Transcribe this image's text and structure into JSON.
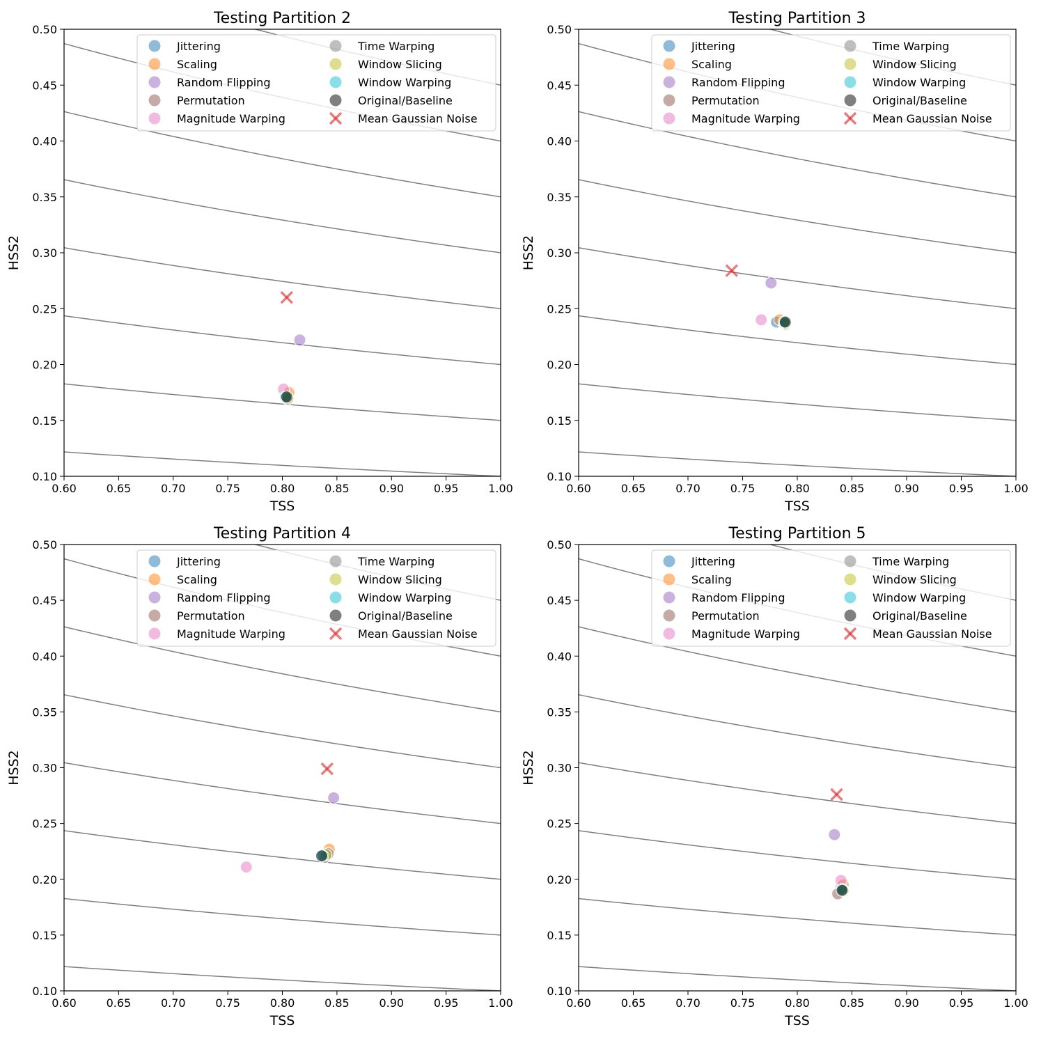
{
  "chart_data": [
    {
      "type": "scatter",
      "title": "Testing Partition 2",
      "xlabel": "TSS",
      "ylabel": "HSS2",
      "xlim": [
        0.6,
        1.0
      ],
      "ylim": [
        0.1,
        0.5
      ],
      "xticks": [
        "0.60",
        "0.65",
        "0.70",
        "0.75",
        "0.80",
        "0.85",
        "0.90",
        "0.95",
        "1.00"
      ],
      "yticks": [
        "0.10",
        "0.15",
        "0.20",
        "0.25",
        "0.30",
        "0.35",
        "0.40",
        "0.45",
        "0.50"
      ],
      "contour_levels": [
        0.1,
        0.15,
        0.2,
        0.25,
        0.3,
        0.35,
        0.4,
        0.45
      ],
      "legend_position": "top-right",
      "points": [
        {
          "series": "Jittering",
          "x": 0.803,
          "y": 0.172
        },
        {
          "series": "Scaling",
          "x": 0.806,
          "y": 0.175
        },
        {
          "series": "Random Flipping",
          "x": 0.816,
          "y": 0.222
        },
        {
          "series": "Permutation",
          "x": 0.805,
          "y": 0.169
        },
        {
          "series": "Magnitude Warping",
          "x": 0.801,
          "y": 0.178
        },
        {
          "series": "Time Warping",
          "x": 0.804,
          "y": 0.171
        },
        {
          "series": "Window Slicing",
          "x": 0.805,
          "y": 0.17
        },
        {
          "series": "Window Warping",
          "x": 0.803,
          "y": 0.171
        },
        {
          "series": "Original/Baseline",
          "x": 0.804,
          "y": 0.171
        },
        {
          "series": "Mean Gaussian Noise",
          "x": 0.804,
          "y": 0.26
        }
      ]
    },
    {
      "type": "scatter",
      "title": "Testing Partition 3",
      "xlabel": "TSS",
      "ylabel": "HSS2",
      "xlim": [
        0.6,
        1.0
      ],
      "ylim": [
        0.1,
        0.5
      ],
      "xticks": [
        "0.60",
        "0.65",
        "0.70",
        "0.75",
        "0.80",
        "0.85",
        "0.90",
        "0.95",
        "1.00"
      ],
      "yticks": [
        "0.10",
        "0.15",
        "0.20",
        "0.25",
        "0.30",
        "0.35",
        "0.40",
        "0.45",
        "0.50"
      ],
      "contour_levels": [
        0.1,
        0.15,
        0.2,
        0.25,
        0.3,
        0.35,
        0.4,
        0.45
      ],
      "legend_position": "top-right",
      "points": [
        {
          "series": "Jittering",
          "x": 0.781,
          "y": 0.238
        },
        {
          "series": "Scaling",
          "x": 0.784,
          "y": 0.24
        },
        {
          "series": "Random Flipping",
          "x": 0.776,
          "y": 0.273
        },
        {
          "series": "Permutation",
          "x": 0.789,
          "y": 0.236
        },
        {
          "series": "Magnitude Warping",
          "x": 0.767,
          "y": 0.24
        },
        {
          "series": "Time Warping",
          "x": 0.788,
          "y": 0.237
        },
        {
          "series": "Window Slicing",
          "x": 0.789,
          "y": 0.237
        },
        {
          "series": "Window Warping",
          "x": 0.788,
          "y": 0.238
        },
        {
          "series": "Original/Baseline",
          "x": 0.789,
          "y": 0.238
        },
        {
          "series": "Mean Gaussian Noise",
          "x": 0.74,
          "y": 0.284
        }
      ]
    },
    {
      "type": "scatter",
      "title": "Testing Partition 4",
      "xlabel": "TSS",
      "ylabel": "HSS2",
      "xlim": [
        0.6,
        1.0
      ],
      "ylim": [
        0.1,
        0.5
      ],
      "xticks": [
        "0.60",
        "0.65",
        "0.70",
        "0.75",
        "0.80",
        "0.85",
        "0.90",
        "0.95",
        "1.00"
      ],
      "yticks": [
        "0.10",
        "0.15",
        "0.20",
        "0.25",
        "0.30",
        "0.35",
        "0.40",
        "0.45",
        "0.50"
      ],
      "contour_levels": [
        0.1,
        0.15,
        0.2,
        0.25,
        0.3,
        0.35,
        0.4,
        0.45
      ],
      "legend_position": "top-right",
      "points": [
        {
          "series": "Jittering",
          "x": 0.838,
          "y": 0.222
        },
        {
          "series": "Scaling",
          "x": 0.843,
          "y": 0.227
        },
        {
          "series": "Random Flipping",
          "x": 0.847,
          "y": 0.273
        },
        {
          "series": "Permutation",
          "x": 0.839,
          "y": 0.22
        },
        {
          "series": "Magnitude Warping",
          "x": 0.767,
          "y": 0.211
        },
        {
          "series": "Time Warping",
          "x": 0.842,
          "y": 0.223
        },
        {
          "series": "Window Slicing",
          "x": 0.84,
          "y": 0.222
        },
        {
          "series": "Window Warping",
          "x": 0.837,
          "y": 0.221
        },
        {
          "series": "Original/Baseline",
          "x": 0.836,
          "y": 0.221
        },
        {
          "series": "Mean Gaussian Noise",
          "x": 0.841,
          "y": 0.299
        }
      ]
    },
    {
      "type": "scatter",
      "title": "Testing Partition 5",
      "xlabel": "TSS",
      "ylabel": "HSS2",
      "xlim": [
        0.6,
        1.0
      ],
      "ylim": [
        0.1,
        0.5
      ],
      "xticks": [
        "0.60",
        "0.65",
        "0.70",
        "0.75",
        "0.80",
        "0.85",
        "0.90",
        "0.95",
        "1.00"
      ],
      "yticks": [
        "0.10",
        "0.15",
        "0.20",
        "0.25",
        "0.30",
        "0.35",
        "0.40",
        "0.45",
        "0.50"
      ],
      "contour_levels": [
        0.1,
        0.15,
        0.2,
        0.25,
        0.3,
        0.35,
        0.4,
        0.45
      ],
      "legend_position": "top-right",
      "points": [
        {
          "series": "Jittering",
          "x": 0.84,
          "y": 0.192
        },
        {
          "series": "Scaling",
          "x": 0.842,
          "y": 0.195
        },
        {
          "series": "Random Flipping",
          "x": 0.834,
          "y": 0.24
        },
        {
          "series": "Permutation",
          "x": 0.837,
          "y": 0.187
        },
        {
          "series": "Magnitude Warping",
          "x": 0.84,
          "y": 0.199
        },
        {
          "series": "Time Warping",
          "x": 0.841,
          "y": 0.191
        },
        {
          "series": "Window Slicing",
          "x": 0.842,
          "y": 0.19
        },
        {
          "series": "Window Warping",
          "x": 0.841,
          "y": 0.191
        },
        {
          "series": "Original/Baseline",
          "x": 0.841,
          "y": 0.19
        },
        {
          "series": "Mean Gaussian Noise",
          "x": 0.836,
          "y": 0.276
        }
      ]
    }
  ],
  "legend": [
    {
      "label": "Jittering",
      "color": "#1f77b4",
      "marker": "circle"
    },
    {
      "label": "Scaling",
      "color": "#ff7f0e",
      "marker": "circle"
    },
    {
      "label": "Random Flipping",
      "color": "#9467bd",
      "marker": "circle"
    },
    {
      "label": "Permutation",
      "color": "#8c564b",
      "marker": "circle"
    },
    {
      "label": "Magnitude Warping",
      "color": "#e377c2",
      "marker": "circle"
    },
    {
      "label": "Time Warping",
      "color": "#7f7f7f",
      "marker": "circle"
    },
    {
      "label": "Window Slicing",
      "color": "#bcbd22",
      "marker": "circle"
    },
    {
      "label": "Window Warping",
      "color": "#17becf",
      "marker": "circle"
    },
    {
      "label": "Original/Baseline",
      "color": "#000000",
      "marker": "circle"
    },
    {
      "label": "Mean Gaussian Noise",
      "color": "#d62728",
      "marker": "x"
    }
  ],
  "style": {
    "marker_alpha": 0.5,
    "contour_color": "#808080",
    "overlap_color": "#1a4d3a"
  }
}
